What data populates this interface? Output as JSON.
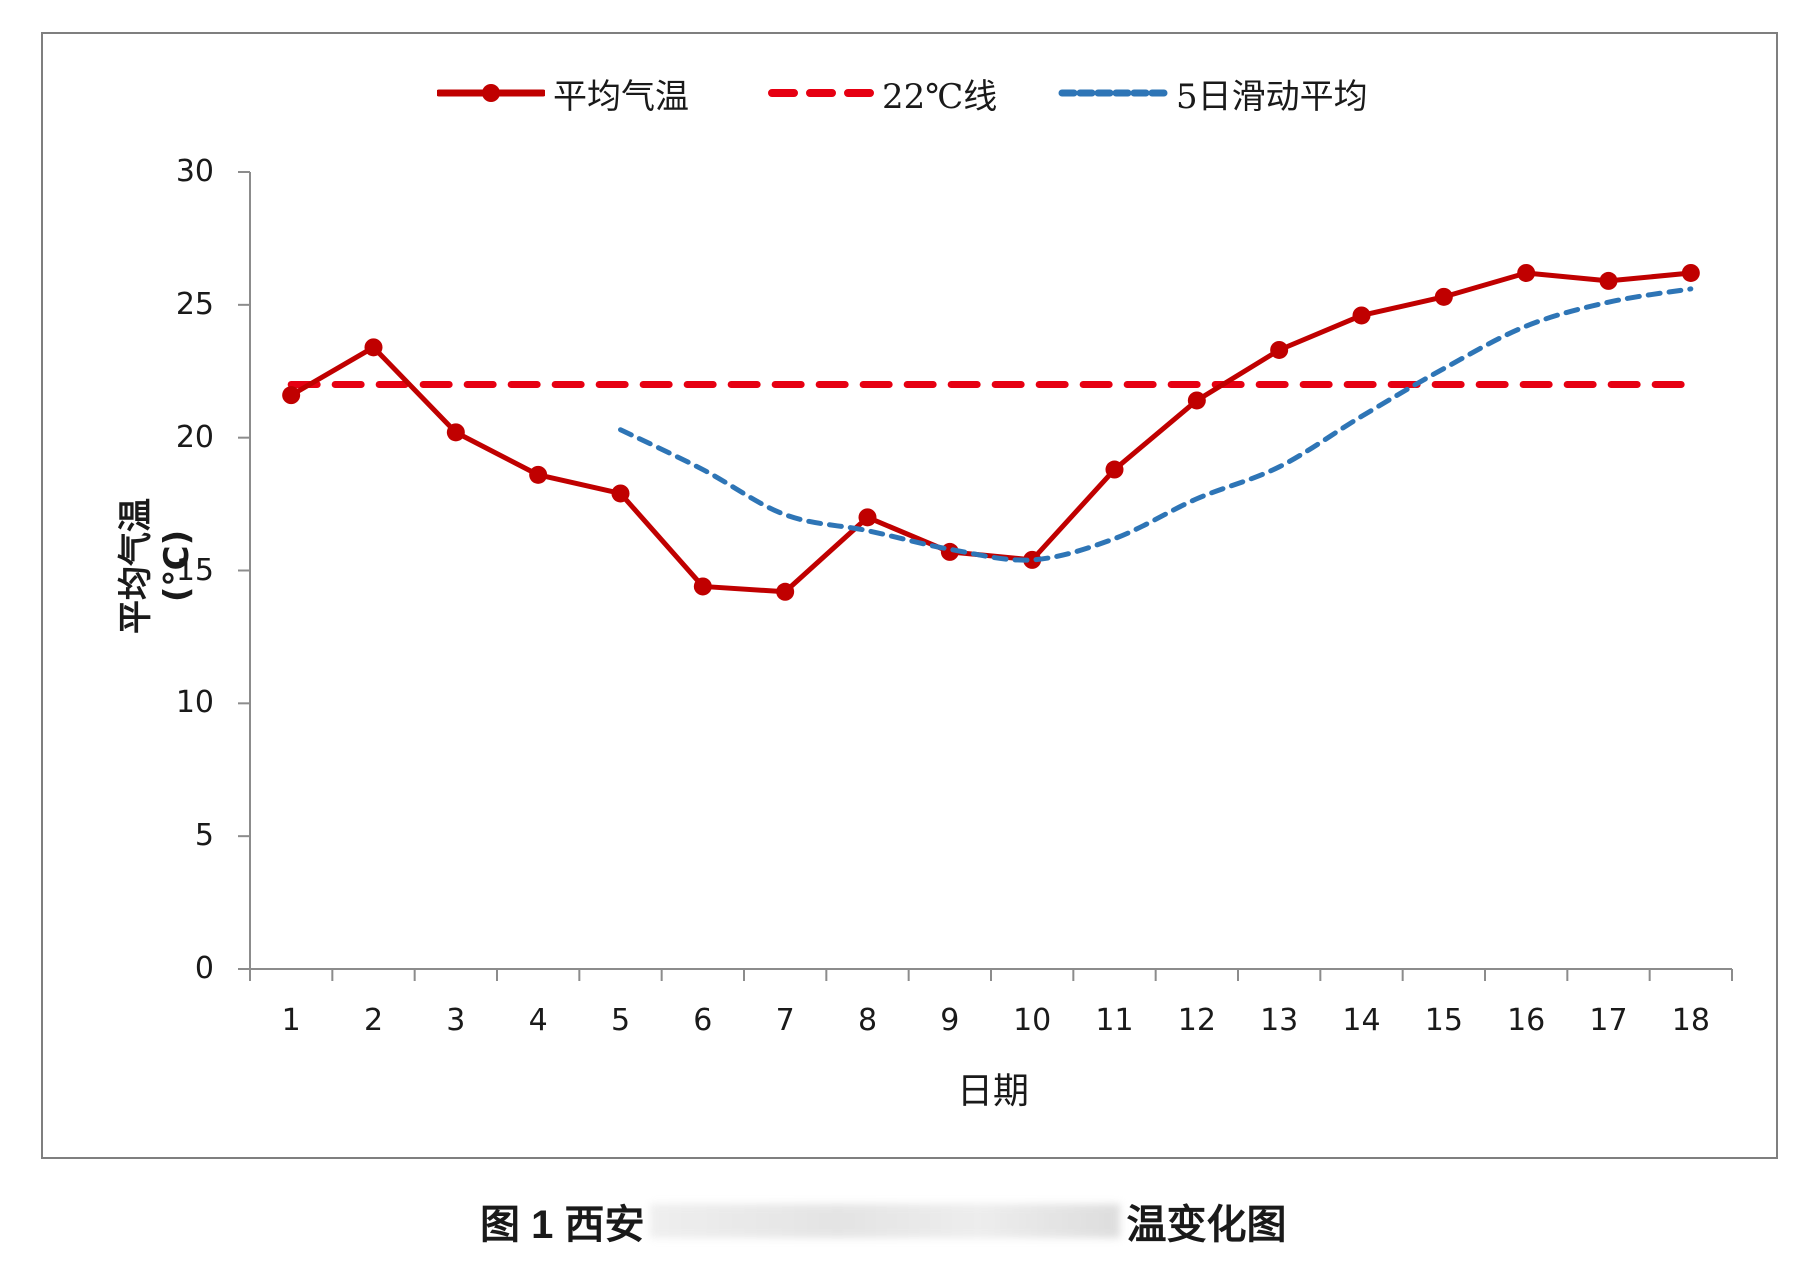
{
  "chart_data": {
    "type": "line",
    "title": "",
    "xlabel": "日期",
    "ylabel": "平均气温(℃)",
    "categories": [
      "1",
      "2",
      "3",
      "4",
      "5",
      "6",
      "7",
      "8",
      "9",
      "10",
      "11",
      "12",
      "13",
      "14",
      "15",
      "16",
      "17",
      "18"
    ],
    "ylim": [
      0,
      30
    ],
    "yticks": [
      0,
      5,
      10,
      15,
      20,
      25,
      30
    ],
    "grid": false,
    "legend_position": "top",
    "series": [
      {
        "name": "平均气温",
        "style": "solid-with-markers",
        "color": "#C00000",
        "values": [
          21.6,
          23.4,
          20.2,
          18.6,
          17.9,
          14.4,
          14.2,
          17.0,
          15.7,
          15.4,
          18.8,
          21.4,
          23.3,
          24.6,
          25.3,
          26.2,
          25.9,
          26.2
        ]
      },
      {
        "name": "22℃线",
        "style": "dashed",
        "color": "#E60012",
        "values": [
          22,
          22,
          22,
          22,
          22,
          22,
          22,
          22,
          22,
          22,
          22,
          22,
          22,
          22,
          22,
          22,
          22,
          22
        ]
      },
      {
        "name": "5日滑动平均",
        "style": "dotted",
        "color": "#2E75B6",
        "values": [
          null,
          null,
          null,
          null,
          20.3,
          18.8,
          17.1,
          16.5,
          15.8,
          15.4,
          16.2,
          17.7,
          18.9,
          20.8,
          22.6,
          24.2,
          25.1,
          25.6
        ]
      }
    ]
  },
  "legend": {
    "items": [
      {
        "label": "平均气温"
      },
      {
        "label": "22℃线"
      },
      {
        "label": "5日滑动平均"
      }
    ]
  },
  "axes": {
    "x_title": "日期",
    "y_title": "平均气温(℃)",
    "y_tick_labels": [
      "30",
      "25",
      "20",
      "15",
      "10",
      "5",
      "0"
    ],
    "x_tick_labels": [
      "1",
      "2",
      "3",
      "4",
      "5",
      "6",
      "7",
      "8",
      "9",
      "10",
      "11",
      "12",
      "13",
      "14",
      "15",
      "16",
      "17",
      "18"
    ]
  },
  "caption": {
    "prefix": "图 1  西安",
    "suffix": "温变化图"
  }
}
